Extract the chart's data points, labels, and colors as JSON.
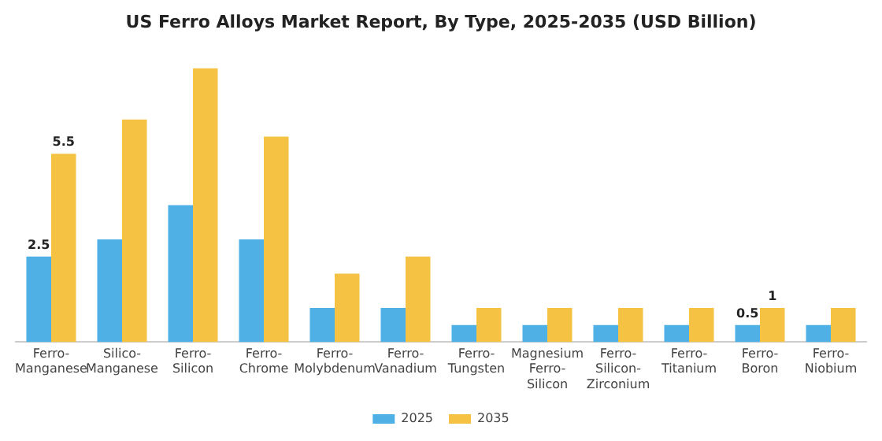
{
  "chart_data": {
    "type": "bar",
    "title": "US Ferro Alloys Market Report, By Type, 2025-2035 (USD Billion)",
    "categories": [
      "Ferro-\nManganese",
      "Silico-\nManganese",
      "Ferro-\nSilicon",
      "Ferro-\nChrome",
      "Ferro-\nMolybdenum",
      "Ferro-\nVanadium",
      "Ferro-\nTungsten",
      "Magnesium\nFerro-\nSilicon",
      "Ferro-\nSilicon-\nZirconium",
      "Ferro-\nTitanium",
      "Ferro-\nBoron",
      "Ferro-\nNiobium"
    ],
    "series": [
      {
        "name": "2025",
        "color": "#4fb0e6",
        "values": [
          2.5,
          3.0,
          4.0,
          3.0,
          1.0,
          1.0,
          0.5,
          0.5,
          0.5,
          0.5,
          0.5,
          0.5
        ],
        "value_labels": [
          "2.5",
          null,
          null,
          null,
          null,
          null,
          null,
          null,
          null,
          null,
          "0.5",
          null
        ]
      },
      {
        "name": "2035",
        "color": "#f6c244",
        "values": [
          5.5,
          6.5,
          8.0,
          6.0,
          2.0,
          2.5,
          1.0,
          1.0,
          1.0,
          1.0,
          1.0,
          1.0
        ],
        "value_labels": [
          "5.5",
          null,
          null,
          null,
          null,
          null,
          null,
          null,
          null,
          null,
          "1",
          null
        ]
      }
    ],
    "legend": "bottom",
    "grid": false
  }
}
